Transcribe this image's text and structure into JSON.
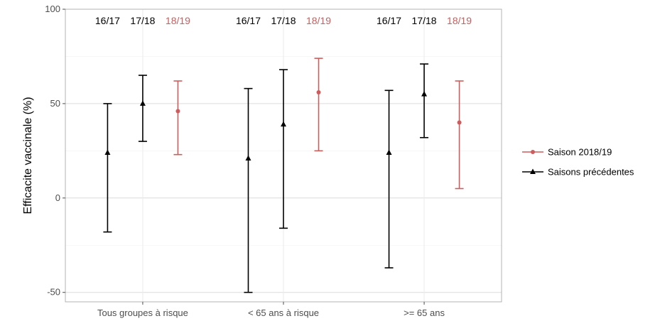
{
  "chart_data": {
    "type": "errorbar",
    "ylabel": "Efficacite vaccinale (%)",
    "xlabel": "",
    "ylim": [
      -55,
      100
    ],
    "y_ticks": [
      -50,
      0,
      50,
      100
    ],
    "y_tick_labels": [
      "-50",
      "0",
      "50",
      "100"
    ],
    "grid": true,
    "legend_position": "right",
    "categories": [
      "Tous groupes à risque",
      "< 65 ans à risque",
      ">= 65 ans"
    ],
    "season_labels": [
      "16/17",
      "17/18",
      "18/19"
    ],
    "season_label_colors": [
      "#000000",
      "#000000",
      "#cd5c5c"
    ],
    "series": [
      {
        "name": "Saison 2018/19",
        "color": "#cd5c5c",
        "marker": "circle",
        "points": [
          {
            "category": "Tous groupes à risque",
            "season": "18/19",
            "value": 46,
            "low": 23,
            "high": 62
          },
          {
            "category": "< 65 ans à risque",
            "season": "18/19",
            "value": 56,
            "low": 25,
            "high": 74
          },
          {
            "category": ">= 65 ans",
            "season": "18/19",
            "value": 40,
            "low": 5,
            "high": 62
          }
        ]
      },
      {
        "name": "Saisons précédentes",
        "color": "#000000",
        "marker": "triangle",
        "points": [
          {
            "category": "Tous groupes à risque",
            "season": "16/17",
            "value": 24,
            "low": -18,
            "high": 50
          },
          {
            "category": "Tous groupes à risque",
            "season": "17/18",
            "value": 50,
            "low": 30,
            "high": 65
          },
          {
            "category": "< 65 ans à risque",
            "season": "16/17",
            "value": 21,
            "low": -50,
            "high": 58
          },
          {
            "category": "< 65 ans à risque",
            "season": "17/18",
            "value": 39,
            "low": -16,
            "high": 68
          },
          {
            "category": ">= 65 ans",
            "season": "16/17",
            "value": 24,
            "low": -37,
            "high": 57
          },
          {
            "category": ">= 65 ans",
            "season": "17/18",
            "value": 55,
            "low": 32,
            "high": 71
          }
        ]
      }
    ]
  }
}
